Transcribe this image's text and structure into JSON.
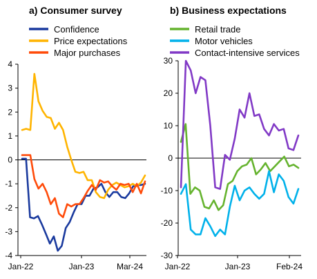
{
  "chart_data": [
    {
      "type": "line",
      "title": "a) Consumer survey",
      "xlabel": "",
      "ylabel": "",
      "ylim": [
        -4,
        4
      ],
      "yticks": [
        4,
        3,
        2,
        1,
        0,
        -1,
        -2,
        -3,
        -4
      ],
      "xtick_labels": [
        "Jan-22",
        "Jan-23",
        "Mar-24"
      ],
      "legend_position": "top",
      "grid": false,
      "series": [
        {
          "name": "Confidence",
          "color": "#1a3a9e",
          "values": [
            0.05,
            0.05,
            -2.4,
            -2.45,
            -2.35,
            -2.7,
            -3.1,
            -3.5,
            -3.2,
            -3.8,
            -3.6,
            -2.85,
            -2.6,
            -2.2,
            -1.85,
            -1.85,
            -1.5,
            -1.5,
            -1.2,
            -1.15,
            -1.0,
            -1.35,
            -1.55,
            -1.35,
            -1.35,
            -1.55,
            -1.6,
            -1.4,
            -1.1,
            -1.05,
            -1.05,
            -1.0
          ]
        },
        {
          "name": "Price expectations",
          "color": "#ffb400",
          "values": [
            1.25,
            1.3,
            1.25,
            3.6,
            2.45,
            2.05,
            1.8,
            1.75,
            1.3,
            1.55,
            1.25,
            0.55,
            0.0,
            -0.5,
            -0.55,
            -0.5,
            -0.85,
            -0.85,
            -1.35,
            -1.55,
            -1.6,
            -1.25,
            -1.05,
            -0.95,
            -1.05,
            -1.15,
            -1.1,
            -1.0,
            -1.1,
            -0.95,
            -0.65
          ]
        },
        {
          "name": "Major purchases",
          "color": "#ff4b0a",
          "values": [
            0.2,
            0.2,
            0.2,
            -0.8,
            -1.2,
            -1.0,
            -1.35,
            -1.85,
            -1.6,
            -2.25,
            -2.4,
            -1.85,
            -1.95,
            -1.85,
            -1.85,
            -1.6,
            -1.3,
            -1.05,
            -1.25,
            -0.85,
            -0.95,
            -0.9,
            -1.1,
            -1.25,
            -1.0,
            -1.05,
            -1.0,
            -1.35,
            -1.0,
            -1.4,
            -0.9
          ]
        }
      ]
    },
    {
      "type": "line",
      "title": "b) Business expectations",
      "xlabel": "",
      "ylabel": "",
      "ylim": [
        -30,
        30
      ],
      "yticks": [
        30,
        20,
        10,
        0,
        -10,
        -20,
        -30
      ],
      "xtick_labels": [
        "Jan-22",
        "Jan-23",
        "Feb-24"
      ],
      "legend_position": "top",
      "grid": false,
      "series": [
        {
          "name": "Retail trade",
          "color": "#65b32e",
          "values": [
            5,
            10.5,
            -11,
            -9,
            -10,
            -15,
            -15.5,
            -13,
            -16,
            -14.5,
            -8,
            -7,
            -4,
            -2.5,
            -2,
            0,
            -5,
            -3.5,
            -1.5,
            -4,
            -2.5,
            -1,
            0.5,
            -2.5,
            -2,
            -3
          ]
        },
        {
          "name": "Motor vehicles",
          "color": "#00b1ea",
          "values": [
            -11,
            -8,
            -22,
            -23.5,
            -23.5,
            -18.5,
            -21,
            -24,
            -22,
            -23.5,
            -15,
            -8.5,
            -13,
            -10,
            -9,
            -11,
            -12.5,
            -11,
            -4,
            -10.5,
            -5,
            -7,
            -12,
            -14,
            -9.5
          ]
        },
        {
          "name": "Contact-intensive services",
          "color": "#8139c6",
          "values": [
            -9,
            30,
            27,
            20,
            25,
            24,
            10,
            -9,
            -9.5,
            1,
            -0.5,
            6,
            15,
            12.5,
            20,
            13,
            13.5,
            9,
            7,
            10.5,
            8.5,
            9,
            3,
            2.5,
            7
          ]
        }
      ]
    }
  ]
}
